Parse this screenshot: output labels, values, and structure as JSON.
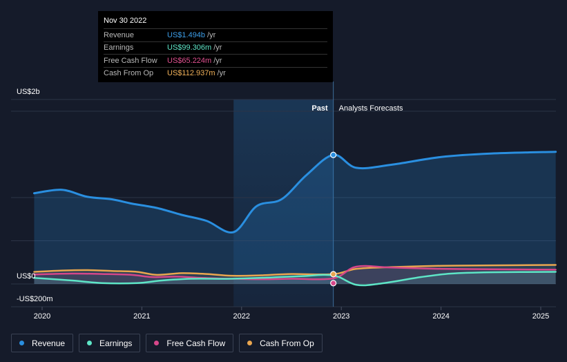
{
  "tooltip": {
    "date": "Nov 30 2022",
    "rows": [
      {
        "label": "Revenue",
        "value": "US$1.494b",
        "unit": "/yr",
        "color": "#3d9ee8"
      },
      {
        "label": "Earnings",
        "value": "US$99.306m",
        "unit": "/yr",
        "color": "#5ee6c7"
      },
      {
        "label": "Free Cash Flow",
        "value": "US$65.224m",
        "unit": "/yr",
        "color": "#e0508f"
      },
      {
        "label": "Cash From Op",
        "value": "US$112.937m",
        "unit": "/yr",
        "color": "#f2b25a"
      }
    ]
  },
  "past_label": "Past",
  "forecast_label": "Analysts Forecasts",
  "legend": [
    {
      "label": "Revenue",
      "color": "#2a8fe0"
    },
    {
      "label": "Earnings",
      "color": "#5ee6c7"
    },
    {
      "label": "Free Cash Flow",
      "color": "#d6478a"
    },
    {
      "label": "Cash From Op",
      "color": "#eaa64f"
    }
  ],
  "chart_data": {
    "type": "line",
    "y_tick_labels": [
      "US$2b",
      "US$0",
      "-US$200m"
    ],
    "x_tick_labels": [
      "2020",
      "2021",
      "2022",
      "2023",
      "2024",
      "2025"
    ],
    "ylim": [
      -200,
      2000
    ],
    "y_unit": "US$m",
    "past_end": 2022.92,
    "series": [
      {
        "name": "Revenue",
        "color": "#2a8fe0",
        "points": [
          [
            2019.92,
            1050
          ],
          [
            2020.2,
            1090
          ],
          [
            2020.45,
            1010
          ],
          [
            2020.7,
            980
          ],
          [
            2020.9,
            930
          ],
          [
            2021.15,
            880
          ],
          [
            2021.4,
            800
          ],
          [
            2021.65,
            730
          ],
          [
            2021.92,
            600
          ],
          [
            2022.15,
            900
          ],
          [
            2022.4,
            980
          ],
          [
            2022.65,
            1260
          ],
          [
            2022.92,
            1494
          ],
          [
            2023.15,
            1345
          ],
          [
            2023.5,
            1380
          ],
          [
            2024.0,
            1470
          ],
          [
            2024.5,
            1510
          ],
          [
            2025.15,
            1530
          ]
        ]
      },
      {
        "name": "Earnings",
        "color": "#5ee6c7",
        "points": [
          [
            2019.92,
            70
          ],
          [
            2020.3,
            40
          ],
          [
            2020.6,
            10
          ],
          [
            2020.95,
            10
          ],
          [
            2021.2,
            40
          ],
          [
            2021.5,
            60
          ],
          [
            2021.9,
            60
          ],
          [
            2022.3,
            75
          ],
          [
            2022.6,
            90
          ],
          [
            2022.92,
            99
          ],
          [
            2023.15,
            -10
          ],
          [
            2023.4,
            5
          ],
          [
            2023.8,
            80
          ],
          [
            2024.1,
            120
          ],
          [
            2024.5,
            135
          ],
          [
            2025.15,
            140
          ]
        ]
      },
      {
        "name": "Free Cash Flow",
        "color": "#d6478a",
        "points": [
          [
            2019.92,
            110
          ],
          [
            2020.3,
            120
          ],
          [
            2020.6,
            115
          ],
          [
            2020.9,
            105
          ],
          [
            2021.1,
            80
          ],
          [
            2021.35,
            85
          ],
          [
            2021.6,
            70
          ],
          [
            2021.9,
            60
          ],
          [
            2022.2,
            55
          ],
          [
            2022.5,
            60
          ],
          [
            2022.92,
            65
          ],
          [
            2023.15,
            200
          ],
          [
            2023.5,
            190
          ],
          [
            2024.0,
            175
          ],
          [
            2024.5,
            170
          ],
          [
            2025.15,
            165
          ]
        ]
      },
      {
        "name": "Cash From Op",
        "color": "#eaa64f",
        "points": [
          [
            2019.92,
            140
          ],
          [
            2020.2,
            155
          ],
          [
            2020.45,
            160
          ],
          [
            2020.7,
            150
          ],
          [
            2020.95,
            140
          ],
          [
            2021.15,
            105
          ],
          [
            2021.4,
            125
          ],
          [
            2021.65,
            115
          ],
          [
            2021.9,
            95
          ],
          [
            2022.2,
            100
          ],
          [
            2022.5,
            115
          ],
          [
            2022.92,
            113
          ],
          [
            2023.15,
            175
          ],
          [
            2023.5,
            195
          ],
          [
            2024.0,
            210
          ],
          [
            2024.5,
            215
          ],
          [
            2025.15,
            220
          ]
        ]
      }
    ]
  }
}
